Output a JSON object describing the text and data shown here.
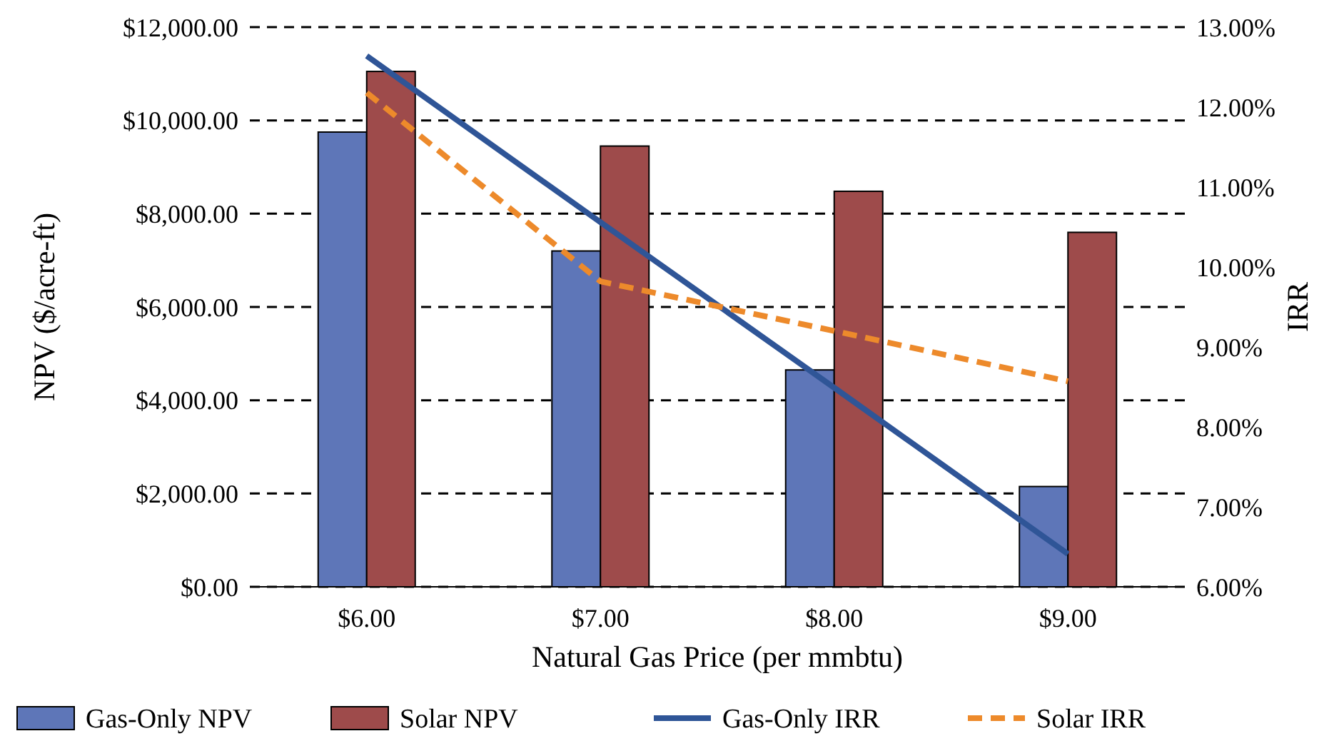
{
  "chart_data": {
    "type": "bar",
    "xlabel": "Natural Gas Price (per mmbtu)",
    "ylabel": "NPV ($/acre-ft)",
    "y2label": "IRR",
    "categories": [
      "$6.00",
      "$7.00",
      "$8.00",
      "$9.00"
    ],
    "series": [
      {
        "name": "Gas-Only NPV",
        "color": "#5e76b8",
        "values": [
          9750,
          7200,
          4650,
          2150
        ]
      },
      {
        "name": "Solar NPV",
        "color": "#9e4b4b",
        "values": [
          11050,
          9450,
          8480,
          7600
        ]
      },
      {
        "name": "Gas-Only IRR",
        "type": "line",
        "axis": "y2",
        "color": "#2f5597",
        "line_style": "solid",
        "values": [
          12.64,
          10.56,
          8.49,
          6.41
        ]
      },
      {
        "name": "Solar IRR",
        "type": "line",
        "axis": "y2",
        "color": "#ed8a2b",
        "line_style": "dashed",
        "values": [
          12.18,
          9.82,
          9.2,
          8.57
        ]
      }
    ],
    "ylim": [
      0,
      12000
    ],
    "yticks": [
      {
        "value": 0,
        "label": "$0.00"
      },
      {
        "value": 2000,
        "label": "$2,000.00"
      },
      {
        "value": 4000,
        "label": "$4,000.00"
      },
      {
        "value": 6000,
        "label": "$6,000.00"
      },
      {
        "value": 8000,
        "label": "$8,000.00"
      },
      {
        "value": 10000,
        "label": "$10,000.00"
      },
      {
        "value": 12000,
        "label": "$12,000.00"
      }
    ],
    "y2lim": [
      6,
      13
    ],
    "y2ticks": [
      {
        "value": 6,
        "label": "6.00%"
      },
      {
        "value": 7,
        "label": "7.00%"
      },
      {
        "value": 8,
        "label": "8.00%"
      },
      {
        "value": 9,
        "label": "9.00%"
      },
      {
        "value": 10,
        "label": "10.00%"
      },
      {
        "value": 11,
        "label": "11.00%"
      },
      {
        "value": 12,
        "label": "12.00%"
      },
      {
        "value": 13,
        "label": "13.00%"
      }
    ],
    "grid": "y",
    "legend": "bottom"
  }
}
